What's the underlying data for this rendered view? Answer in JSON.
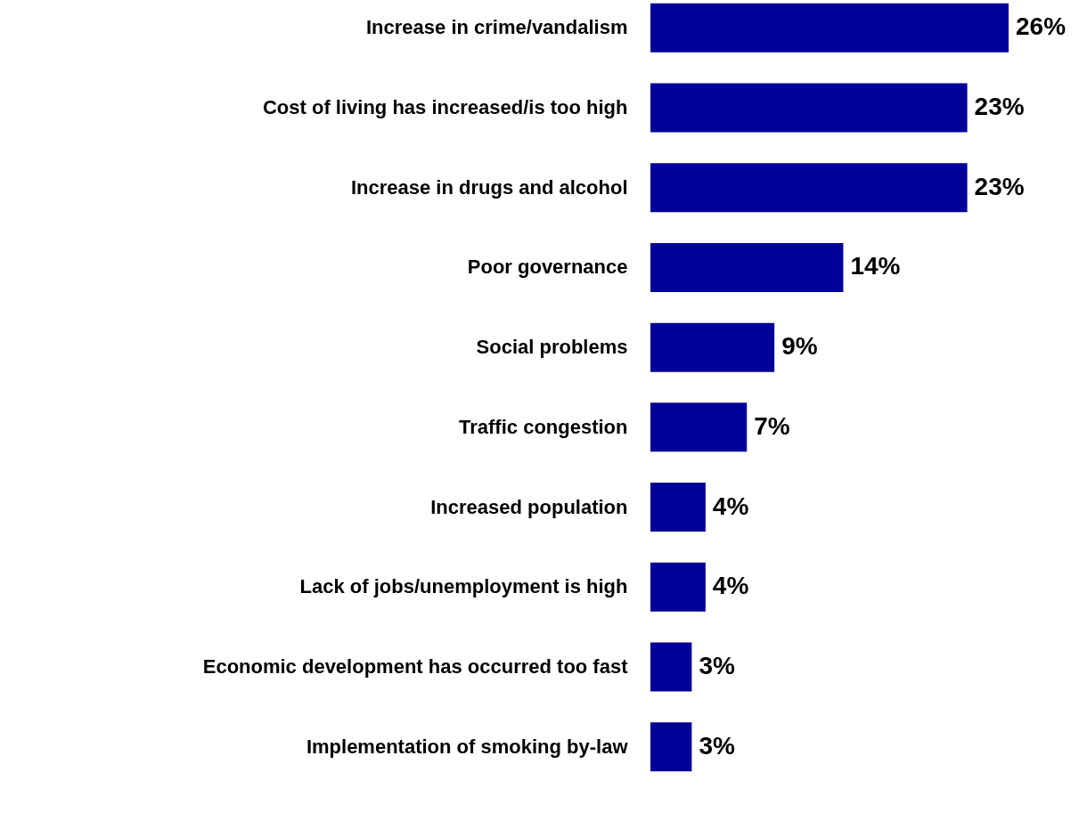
{
  "chart_data": {
    "type": "bar",
    "orientation": "horizontal",
    "categories": [
      "Increase in crime/vandalism",
      "Cost of living has increased/is too high",
      "Increase in drugs and alcohol",
      "Poor governance",
      "Social problems",
      "Traffic congestion",
      "Increased population",
      "Lack of jobs/unemployment is high",
      "Economic development has occurred too fast",
      "Implementation of smoking by-law"
    ],
    "values": [
      26,
      23,
      23,
      14,
      9,
      7,
      4,
      4,
      3,
      3
    ],
    "color": "#000099",
    "value_labels": [
      "26%",
      "23%",
      "23%",
      "14%",
      "9%",
      "7%",
      "4%",
      "4%",
      "3%",
      "3%"
    ],
    "grid": false
  }
}
